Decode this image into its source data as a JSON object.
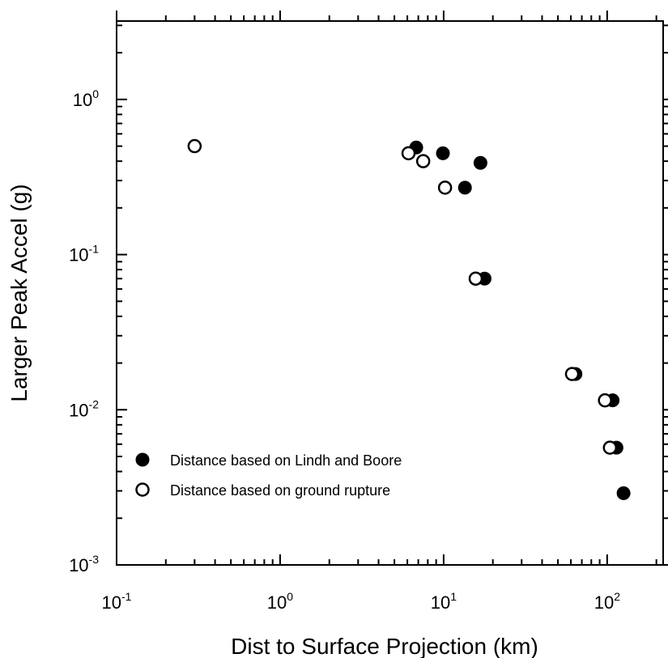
{
  "chart_data": {
    "type": "scatter",
    "title": "",
    "xlabel": "Dist to Surface Projection (km)",
    "ylabel": "Larger Peak Accel (g)",
    "xscale": "log",
    "yscale": "log",
    "xlim": [
      0.1,
      220
    ],
    "ylim": [
      0.001,
      3.2
    ],
    "grid": false,
    "legend_position": "lower-left",
    "x_ticks": [
      {
        "base": "10",
        "exp": "-1",
        "value": 0.1
      },
      {
        "base": "10",
        "exp": "0",
        "value": 1
      },
      {
        "base": "10",
        "exp": "1",
        "value": 10
      },
      {
        "base": "10",
        "exp": "2",
        "value": 100
      }
    ],
    "y_ticks": [
      {
        "base": "10",
        "exp": "-3",
        "value": 0.001
      },
      {
        "base": "10",
        "exp": "-2",
        "value": 0.01
      },
      {
        "base": "10",
        "exp": "-1",
        "value": 0.1
      },
      {
        "base": "10",
        "exp": "0",
        "value": 1
      }
    ],
    "series": [
      {
        "name": "Distance based on Lindh and Boore",
        "marker": "filled-circle",
        "color": "#000000",
        "points": [
          {
            "x": 6.8,
            "y": 0.49
          },
          {
            "x": 9.9,
            "y": 0.45
          },
          {
            "x": 16.8,
            "y": 0.39
          },
          {
            "x": 13.5,
            "y": 0.27
          },
          {
            "x": 17.8,
            "y": 0.07
          },
          {
            "x": 64,
            "y": 0.017
          },
          {
            "x": 108,
            "y": 0.0115
          },
          {
            "x": 114,
            "y": 0.0057
          },
          {
            "x": 126,
            "y": 0.0029
          }
        ]
      },
      {
        "name": "Distance based on ground rupture",
        "marker": "open-circle",
        "color": "#000000",
        "points": [
          {
            "x": 0.3,
            "y": 0.5
          },
          {
            "x": 6.1,
            "y": 0.45
          },
          {
            "x": 7.5,
            "y": 0.4
          },
          {
            "x": 10.2,
            "y": 0.27
          },
          {
            "x": 15.7,
            "y": 0.07
          },
          {
            "x": 61,
            "y": 0.017
          },
          {
            "x": 97,
            "y": 0.0115
          },
          {
            "x": 104,
            "y": 0.0057
          }
        ]
      }
    ]
  }
}
